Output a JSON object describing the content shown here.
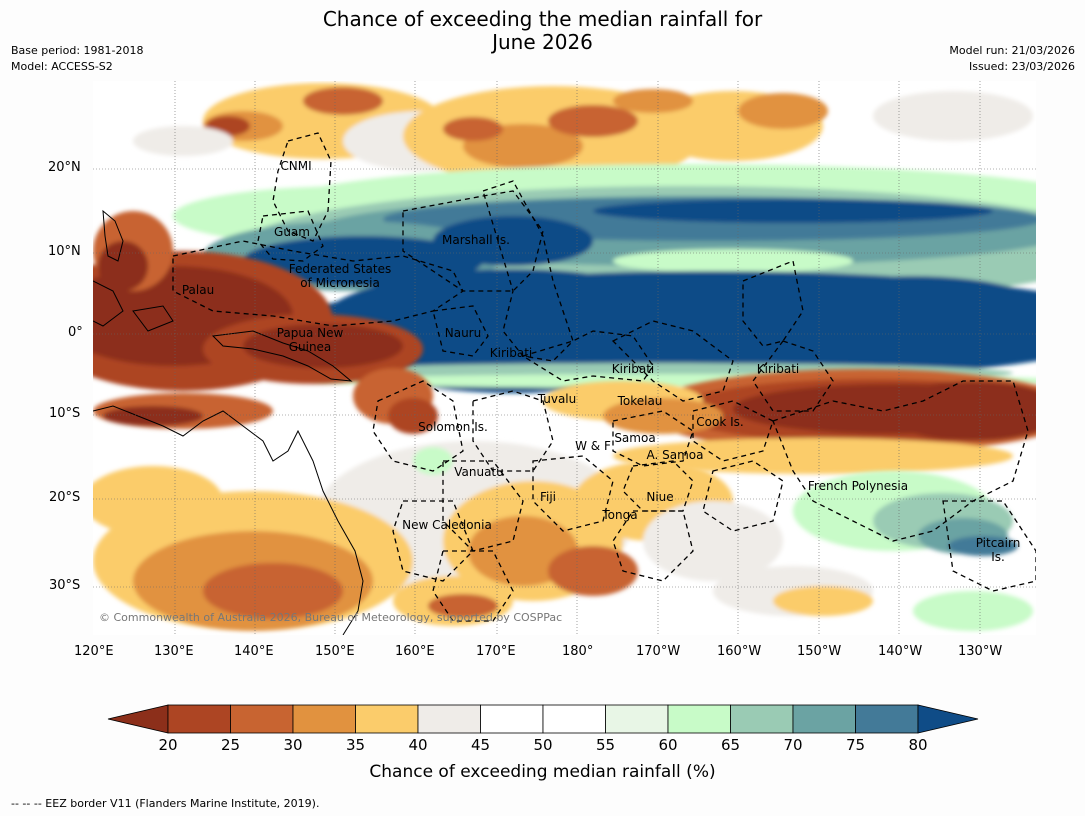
{
  "title_line1": "Chance of exceeding the median rainfall for",
  "title_line2": "June 2026",
  "base_period": "Base period: 1981-2018",
  "model": "Model: ACCESS-S2",
  "model_run": "Model run: 21/03/2026",
  "issued": "Issued: 23/03/2026",
  "copyright": "© Commonwealth of Australia 2026, Bureau of Meteorology, supported by COSPPac",
  "lat_labels": [
    "20°N",
    "10°N",
    "0°",
    "10°S",
    "20°S",
    "30°S"
  ],
  "lon_labels": [
    "120°E",
    "130°E",
    "140°E",
    "150°E",
    "160°E",
    "170°E",
    "180°",
    "170°W",
    "160°W",
    "150°W",
    "140°W",
    "130°W"
  ],
  "places": {
    "cnmi": "CNMI",
    "guam": "Guam",
    "marshall": "Marshall Is.",
    "fsm1": "Federated States",
    "fsm2": "of Micronesia",
    "palau": "Palau",
    "png1": "Papua New",
    "png2": "Guinea",
    "nauru": "Nauru",
    "kiribati_w": "Kiribati",
    "kiribati_c": "Kiribati",
    "kiribati_e": "Kiribati",
    "tuvalu": "Tuvalu",
    "tokelau": "Tokelau",
    "cook": "Cook Is.",
    "solomon": "Solomon Is.",
    "wf": "W & F",
    "samoa": "Samoa",
    "asamoa": "A. Samoa",
    "vanuatu": "Vanuatu",
    "fiji": "Fiji",
    "niue": "Niue",
    "tonga": "Tonga",
    "fp": "French Polynesia",
    "newcal": "New Caledonia",
    "pitcairn1": "Pitcairn",
    "pitcairn2": "Is."
  },
  "colorbar": {
    "ticks": [
      "20",
      "25",
      "30",
      "35",
      "40",
      "45",
      "50",
      "55",
      "60",
      "65",
      "70",
      "75",
      "80"
    ],
    "colors": [
      "#8c2f1a",
      "#ad4523",
      "#c86431",
      "#e1923f",
      "#fbcc6b",
      "#efece8",
      "#ffffff",
      "#ffffff",
      "#e8f6e6",
      "#c8fbc8",
      "#9acbb4",
      "#6ba3a3",
      "#437a98",
      "#0f4c87"
    ],
    "title": "Chance of exceeding median rainfall (%)"
  },
  "footer": "--  --  -- EEZ border V11 (Flanders Marine Institute, 2019)."
}
